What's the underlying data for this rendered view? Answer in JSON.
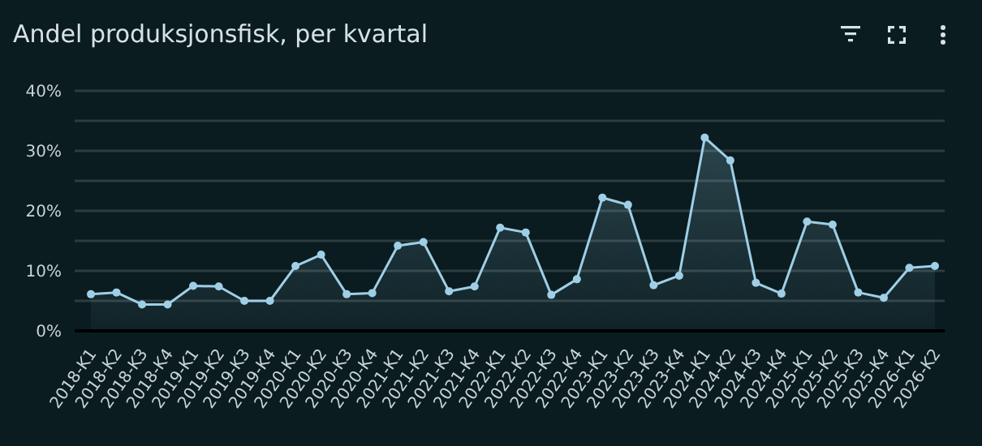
{
  "chart_data": {
    "type": "area",
    "title": "Andel produksjonsfisk, per kvartal",
    "categories": [
      "2018-K1",
      "2018-K2",
      "2018-K3",
      "2018-K4",
      "2019-K1",
      "2019-K2",
      "2019-K3",
      "2019-K4",
      "2020-K1",
      "2020-K2",
      "2020-K3",
      "2020-K4",
      "2021-K1",
      "2021-K2",
      "2021-K3",
      "2021-K4",
      "2022-K1",
      "2022-K2",
      "2022-K3",
      "2022-K4",
      "2023-K1",
      "2023-K2",
      "2023-K3",
      "2023-K4",
      "2024-K1",
      "2024-K2",
      "2024-K3",
      "2024-K4",
      "2025-K1",
      "2025-K2",
      "2025-K3",
      "2025-K4",
      "2026-K1",
      "2026-K2"
    ],
    "series": [
      {
        "color": "#9fcfe6",
        "values": [
          6.1,
          6.4,
          4.4,
          4.4,
          7.5,
          7.4,
          5,
          5,
          10.8,
          12.7,
          6.1,
          6.3,
          14.2,
          14.8,
          6.6,
          7.4,
          17.2,
          16.4,
          6,
          8.6,
          22.2,
          21,
          7.6,
          9.2,
          32.2,
          28.4,
          8,
          6.2,
          18.2,
          17.7,
          6.4,
          5.5,
          10.5,
          10.8
        ]
      }
    ],
    "ylim": [
      0,
      40
    ],
    "yticks": [
      {
        "value": 0,
        "label": "0%"
      },
      {
        "value": 5,
        "label": null
      },
      {
        "value": 10,
        "label": "10%"
      },
      {
        "value": 15,
        "label": null
      },
      {
        "value": 20,
        "label": "20%"
      },
      {
        "value": 25,
        "label": null
      },
      {
        "value": 30,
        "label": "30%"
      },
      {
        "value": 35,
        "label": null
      },
      {
        "value": 40,
        "label": "40%"
      }
    ],
    "grid": "y",
    "marker": "circle",
    "line_style": "solid",
    "legend": false
  }
}
